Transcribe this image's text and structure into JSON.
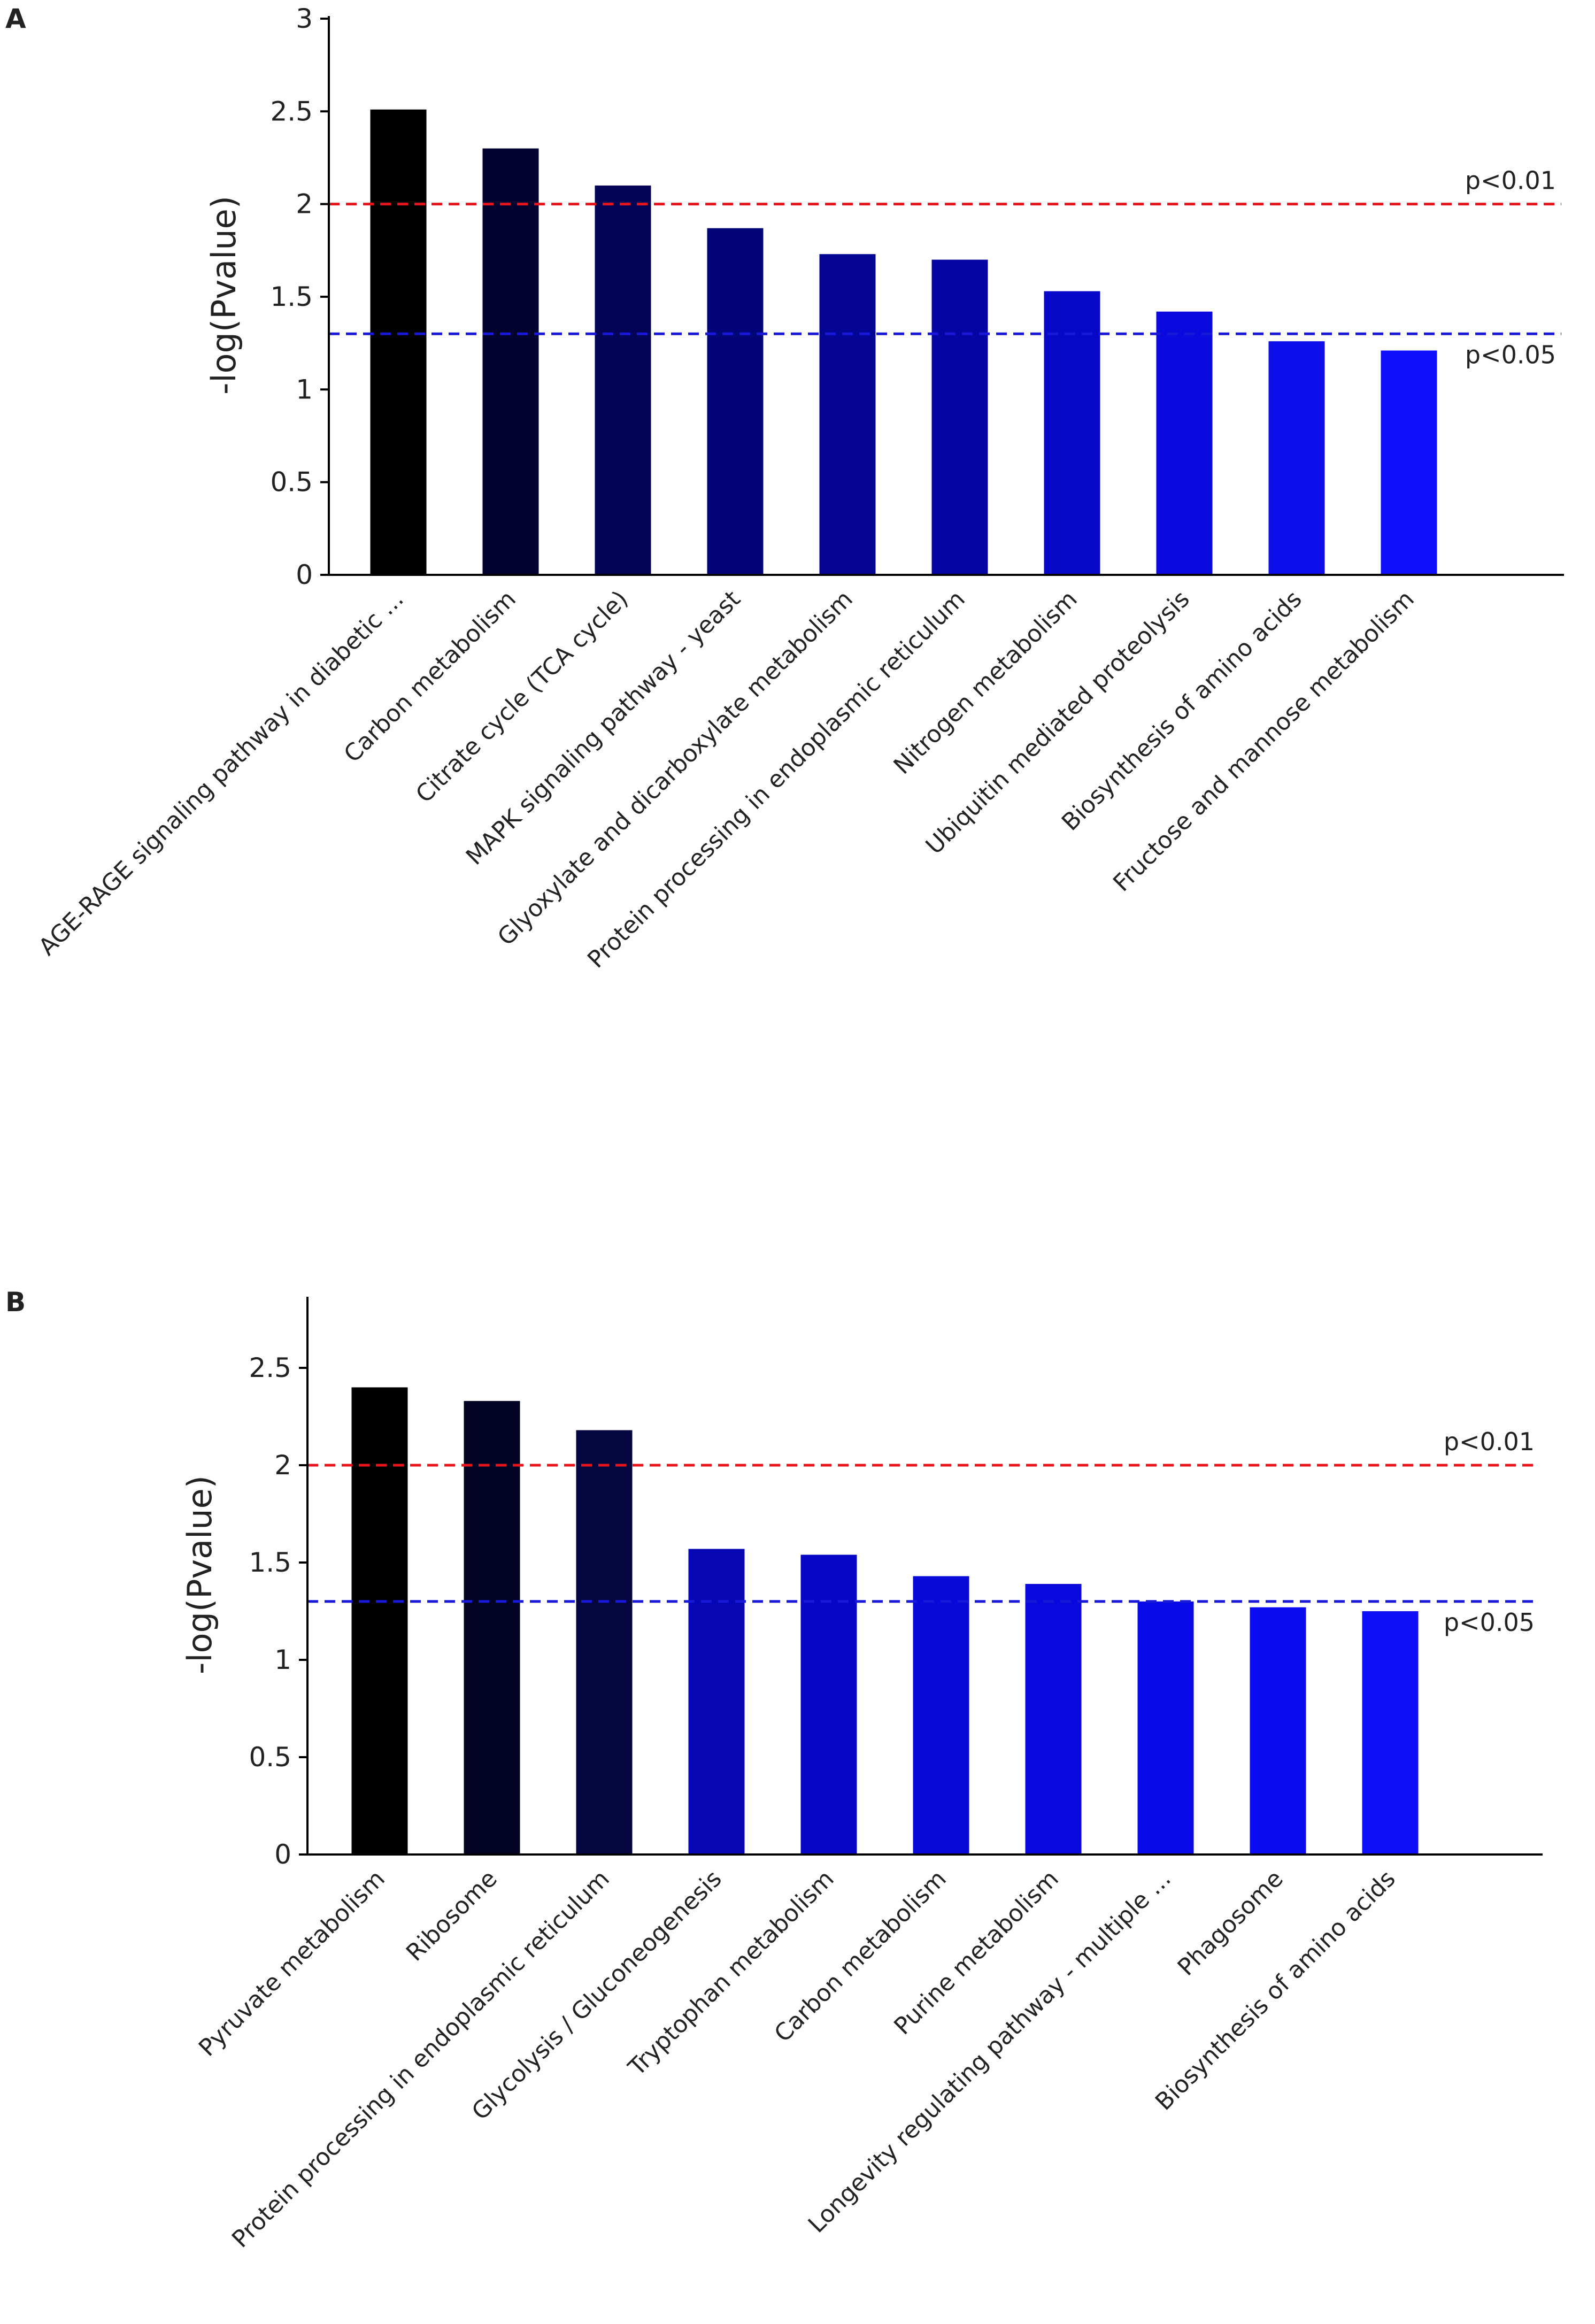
{
  "chart_data": [
    {
      "type": "bar",
      "panel_label": "A",
      "ylabel": "-log(Pvalue)",
      "ylim": [
        0,
        3
      ],
      "yticks": [
        0,
        0.5,
        1,
        1.5,
        2,
        2.5,
        3
      ],
      "ytick_labels": [
        "0",
        "0.5",
        "1",
        "1.5",
        "2",
        "2.5",
        "3"
      ],
      "categories": [
        "AGE-RAGE signaling pathway in diabetic ...",
        "Carbon metabolism",
        "Citrate cycle (TCA cycle)",
        "MAPK signaling pathway - yeast",
        "Glyoxylate and dicarboxylate metabolism",
        "Protein processing in endoplasmic reticulum",
        "Nitrogen metabolism",
        "Ubiquitin mediated proteolysis",
        "Biosynthesis of amino acids",
        "Fructose and mannose metabolism"
      ],
      "values": [
        2.51,
        2.3,
        2.1,
        1.87,
        1.73,
        1.7,
        1.53,
        1.42,
        1.26,
        1.21
      ],
      "bar_colors": [
        "#000000",
        "#03032f",
        "#030358",
        "#040479",
        "#050595",
        "#0505a3",
        "#0808c8",
        "#0a0ade",
        "#0e0eea",
        "#1010ff"
      ],
      "threshold_lines": [
        {
          "label": "p<0.01",
          "value": 2.0,
          "color": "#e8141c"
        },
        {
          "label": "p<0.05",
          "value": 1.3,
          "color": "#1818d8"
        }
      ]
    },
    {
      "type": "bar",
      "panel_label": "B",
      "ylabel": "-log(Pvalue)",
      "ylim": [
        0,
        2.85
      ],
      "yticks": [
        0,
        0.5,
        1,
        1.5,
        2,
        2.5
      ],
      "ytick_labels": [
        "0",
        "0.5",
        "1",
        "1.5",
        "2",
        "2.5"
      ],
      "categories": [
        "Pyruvate metabolism",
        "Ribosome",
        "Protein processing in endoplasmic reticulum",
        "Glycolysis / Gluconeogenesis",
        "Tryptophan metabolism",
        "Carbon metabolism",
        "Purine metabolism",
        "Longevity regulating pathway - multiple ...",
        "Phagosome",
        "Biosynthesis of amino acids"
      ],
      "values": [
        2.4,
        2.33,
        2.18,
        1.57,
        1.54,
        1.43,
        1.39,
        1.3,
        1.27,
        1.25
      ],
      "bar_colors": [
        "#000000",
        "#030324",
        "#050540",
        "#0606b4",
        "#0606c4",
        "#0808d8",
        "#0909de",
        "#0a0ae8",
        "#0c0cf2",
        "#0e0ef8"
      ],
      "threshold_lines": [
        {
          "label": "p<0.01",
          "value": 2.0,
          "color": "#e8141c"
        },
        {
          "label": "p<0.05",
          "value": 1.3,
          "color": "#1818d8"
        }
      ]
    }
  ]
}
